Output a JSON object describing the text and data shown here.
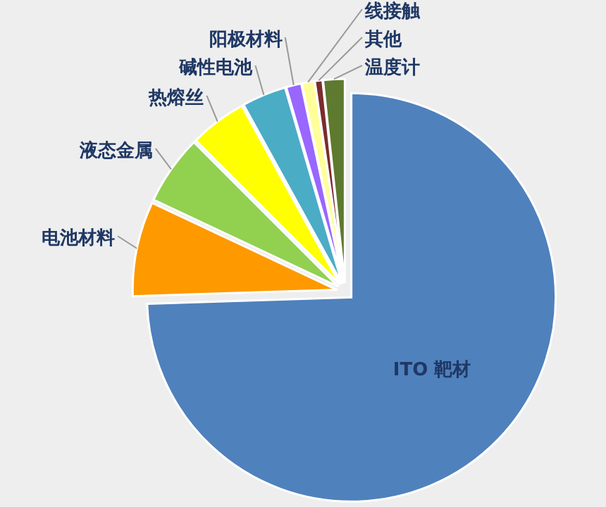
{
  "chart_data": {
    "type": "pie",
    "categories": [
      "ITO 靶材",
      "电池材料",
      "液态金属",
      "热熔丝",
      "碱性电池",
      "阳极材料",
      "线接触",
      "其他",
      "温度计"
    ],
    "values": [
      74.5,
      7.5,
      5.5,
      4.5,
      3.5,
      1.2,
      1,
      0.6,
      1.7
    ],
    "colors": [
      "#4f81bd",
      "#ff9900",
      "#92d050",
      "#ffff00",
      "#4bacc6",
      "#9966ff",
      "#ffff99",
      "#7b2c2c",
      "#5e7a2e"
    ]
  }
}
